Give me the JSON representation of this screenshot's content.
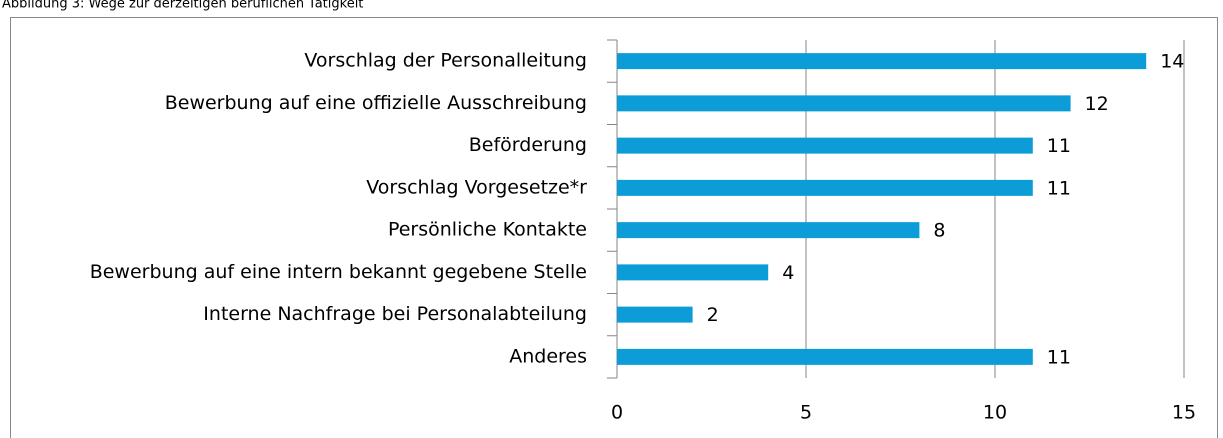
{
  "chart_data": {
    "type": "bar",
    "orientation": "horizontal",
    "title": "Abbildung 3: Wege zur derzeitigen beruflichen Tätigkeit",
    "categories": [
      "Vorschlag der Personalleitung",
      "Bewerbung auf eine offizielle Ausschreibung",
      "Beförderung",
      "Vorschlag Vorgesetze*r",
      "Persönliche Kontakte",
      "Bewerbung auf eine intern bekannt gegebene Stelle",
      "Interne Nachfrage bei Personalabteilung",
      "Anderes"
    ],
    "values": [
      14,
      12,
      11,
      11,
      8,
      4,
      2,
      11
    ],
    "color": "#0c9dd8",
    "xlim": [
      0,
      15
    ],
    "xticks": [
      0,
      5,
      10,
      15
    ],
    "grid": true
  }
}
